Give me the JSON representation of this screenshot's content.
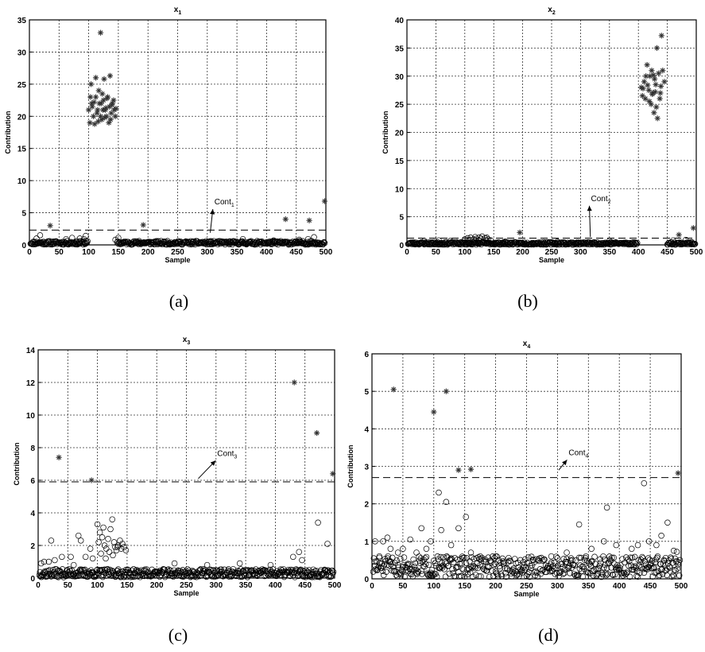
{
  "captions": [
    "(a)",
    "(b)",
    "(c)",
    "(d)"
  ],
  "chart_data": [
    {
      "type": "scatter",
      "title": "x",
      "title_sub": "1",
      "xlabel": "Sample",
      "ylabel": "Contribution",
      "xlim": [
        0,
        500
      ],
      "ylim": [
        0,
        35
      ],
      "xticks": [
        0,
        50,
        100,
        150,
        200,
        250,
        300,
        350,
        400,
        450,
        500
      ],
      "yticks": [
        0,
        5,
        10,
        15,
        20,
        25,
        30,
        35
      ],
      "grid": true,
      "control_limit": 2.3,
      "annotation": {
        "text": "Cont",
        "sub": "1",
        "x": 312,
        "y": 6.3,
        "arrow_to": [
          305,
          1.9
        ]
      },
      "series": [
        {
          "marker": "star",
          "points": [
            [
              35,
              3
            ],
            [
              192,
              3.1
            ],
            [
              432,
              4
            ],
            [
              472,
              3.8
            ],
            [
              498,
              6.8
            ],
            [
              120,
              33
            ],
            [
              112,
              26
            ],
            [
              104,
              25
            ],
            [
              126,
              25.8
            ],
            [
              136,
              26.3
            ],
            [
              100,
              21
            ],
            [
              105,
              22
            ],
            [
              108,
              20
            ],
            [
              112,
              23
            ],
            [
              115,
              21
            ],
            [
              118,
              22
            ],
            [
              120,
              20
            ],
            [
              122,
              19.5
            ],
            [
              125,
              22.5
            ],
            [
              128,
              21
            ],
            [
              130,
              20
            ],
            [
              132,
              23
            ],
            [
              135,
              21.5
            ],
            [
              138,
              20.5
            ],
            [
              140,
              22
            ],
            [
              143,
              21
            ],
            [
              145,
              20
            ],
            [
              102,
              19
            ],
            [
              106,
              21.5
            ],
            [
              110,
              18.8
            ],
            [
              114,
              20.5
            ],
            [
              117,
              24
            ],
            [
              121,
              22
            ],
            [
              124,
              21
            ],
            [
              127,
              19.8
            ],
            [
              131,
              22.8
            ],
            [
              134,
              19
            ],
            [
              139,
              21.8
            ],
            [
              142,
              22.5
            ],
            [
              146,
              21.2
            ],
            [
              103,
              23
            ],
            [
              109,
              22.2
            ],
            [
              116,
              19.2
            ],
            [
              123,
              23.5
            ],
            [
              129,
              21.3
            ],
            [
              137,
              19.5
            ]
          ]
        },
        {
          "marker": "circle",
          "seed": 11,
          "ranges": [
            [
              2,
              98,
              0.05,
              0.6
            ],
            [
              148,
              498,
              0.05,
              0.6
            ]
          ],
          "points": [
            [
              18,
              1.5
            ],
            [
              12,
              1.0
            ],
            [
              62,
              0.9
            ],
            [
              72,
              1.1
            ],
            [
              85,
              1.0
            ],
            [
              95,
              1.4
            ],
            [
              92,
              0.9
            ],
            [
              145,
              0.8
            ],
            [
              150,
              1.1
            ],
            [
              185,
              0.6
            ],
            [
              360,
              0.9
            ],
            [
              412,
              0.7
            ],
            [
              455,
              0.8
            ],
            [
              470,
              0.9
            ],
            [
              480,
              1.2
            ]
          ]
        }
      ]
    },
    {
      "type": "scatter",
      "title": "x",
      "title_sub": "2",
      "xlabel": "Sample",
      "ylabel": "Contribution",
      "xlim": [
        0,
        500
      ],
      "ylim": [
        0,
        40
      ],
      "xticks": [
        0,
        50,
        100,
        150,
        200,
        250,
        300,
        350,
        400,
        450,
        500
      ],
      "yticks": [
        0,
        5,
        10,
        15,
        20,
        25,
        30,
        35,
        40
      ],
      "grid": true,
      "control_limit": 1.2,
      "annotation": {
        "text": "Cont",
        "sub": "2",
        "x": 318,
        "y": 7.8,
        "arrow_to": [
          317,
          1.4
        ]
      },
      "series": [
        {
          "marker": "star",
          "points": [
            [
              195,
              2.2
            ],
            [
              470,
              1.8
            ],
            [
              495,
              3
            ],
            [
              440,
              37.2
            ],
            [
              432,
              35
            ],
            [
              415,
              32
            ],
            [
              420,
              30
            ],
            [
              405,
              28
            ],
            [
              410,
              29
            ],
            [
              425,
              27
            ],
            [
              430,
              28.5
            ],
            [
              435,
              30.5
            ],
            [
              412,
              26
            ],
            [
              418,
              27.5
            ],
            [
              422,
              25
            ],
            [
              428,
              29.5
            ],
            [
              438,
              27
            ],
            [
              442,
              31
            ],
            [
              408,
              27.8
            ],
            [
              416,
              28.4
            ],
            [
              424,
              26.8
            ],
            [
              427,
              23.5
            ],
            [
              433,
              22.5
            ],
            [
              437,
              26
            ],
            [
              445,
              29
            ],
            [
              413,
              30
            ],
            [
              419,
              25.5
            ],
            [
              426,
              30.2
            ],
            [
              431,
              24.5
            ],
            [
              407,
              26.5
            ],
            [
              423,
              31
            ],
            [
              439,
              28.2
            ],
            [
              429,
              27.2
            ]
          ]
        },
        {
          "marker": "circle",
          "seed": 23,
          "ranges": [
            [
              2,
              398,
              0.05,
              0.5
            ],
            [
              450,
              498,
              0.05,
              0.5
            ]
          ],
          "points": [
            [
              100,
              1.0
            ],
            [
              105,
              1.2
            ],
            [
              110,
              1.3
            ],
            [
              115,
              1.0
            ],
            [
              120,
              1.1
            ],
            [
              125,
              1.3
            ],
            [
              130,
              1.5
            ],
            [
              135,
              1.2
            ],
            [
              140,
              1.0
            ],
            [
              145,
              0.8
            ],
            [
              108,
              0.9
            ],
            [
              118,
              1.4
            ],
            [
              128,
              1.1
            ],
            [
              138,
              1.3
            ],
            [
              30,
              0.7
            ],
            [
              55,
              0.8
            ],
            [
              75,
              0.7
            ],
            [
              170,
              0.6
            ],
            [
              260,
              0.6
            ],
            [
              350,
              0.7
            ],
            [
              460,
              0.8
            ],
            [
              482,
              0.9
            ]
          ]
        }
      ]
    },
    {
      "type": "scatter",
      "title": "x",
      "title_sub": "3",
      "xlabel": "Sample",
      "ylabel": "Contribution",
      "xlim": [
        0,
        500
      ],
      "ylim": [
        0,
        14
      ],
      "xticks": [
        0,
        50,
        100,
        150,
        200,
        250,
        300,
        350,
        400,
        450,
        500
      ],
      "yticks": [
        0,
        2,
        4,
        6,
        8,
        10,
        12,
        14
      ],
      "grid": true,
      "control_limit": 5.9,
      "annotation": {
        "text": "Cont",
        "sub": "3",
        "x": 302,
        "y": 7.5,
        "arrow_to": [
          270,
          6.1
        ]
      },
      "series": [
        {
          "marker": "star",
          "points": [
            [
              35,
              7.4
            ],
            [
              90,
              6
            ],
            [
              432,
              12
            ],
            [
              470,
              8.9
            ],
            [
              497,
              6.4
            ]
          ]
        },
        {
          "marker": "circle",
          "seed": 37,
          "ranges": [
            [
              2,
              498,
              0.05,
              0.55
            ]
          ],
          "points": [
            [
              10,
              1.0
            ],
            [
              22,
              2.3
            ],
            [
              28,
              1.1
            ],
            [
              40,
              1.3
            ],
            [
              55,
              1.3
            ],
            [
              60,
              0.8
            ],
            [
              68,
              2.6
            ],
            [
              72,
              2.3
            ],
            [
              80,
              1.3
            ],
            [
              88,
              1.8
            ],
            [
              92,
              1.2
            ],
            [
              100,
              3.3
            ],
            [
              104,
              2.8
            ],
            [
              108,
              2.5
            ],
            [
              110,
              3.1
            ],
            [
              112,
              2.0
            ],
            [
              115,
              1.8
            ],
            [
              118,
              2.4
            ],
            [
              120,
              1.6
            ],
            [
              122,
              3.0
            ],
            [
              125,
              3.6
            ],
            [
              128,
              2.2
            ],
            [
              130,
              1.9
            ],
            [
              132,
              1.7
            ],
            [
              135,
              2.0
            ],
            [
              138,
              2.3
            ],
            [
              140,
              1.8
            ],
            [
              142,
              2.1
            ],
            [
              145,
              1.9
            ],
            [
              148,
              1.7
            ],
            [
              102,
              2.2
            ],
            [
              106,
              1.5
            ],
            [
              114,
              1.2
            ],
            [
              126,
              1.4
            ],
            [
              134,
              1.9
            ],
            [
              230,
              0.9
            ],
            [
              285,
              0.8
            ],
            [
              340,
              0.9
            ],
            [
              392,
              0.8
            ],
            [
              430,
              1.3
            ],
            [
              440,
              1.6
            ],
            [
              445,
              1.1
            ],
            [
              472,
              3.4
            ],
            [
              488,
              2.1
            ],
            [
              18,
              1.0
            ],
            [
              5,
              0.9
            ]
          ]
        }
      ]
    },
    {
      "type": "scatter",
      "title": "x",
      "title_sub": "4",
      "xlabel": "Sample",
      "ylabel": "Contribution",
      "xlim": [
        0,
        500
      ],
      "ylim": [
        0,
        6
      ],
      "xticks": [
        0,
        50,
        100,
        150,
        200,
        250,
        300,
        350,
        400,
        450,
        500
      ],
      "yticks": [
        0,
        1,
        2,
        3,
        4,
        5,
        6
      ],
      "grid": true,
      "control_limit": 2.7,
      "annotation": {
        "text": "Cont",
        "sub": "4",
        "x": 318,
        "y": 3.3,
        "arrow_to": [
          302,
          2.9
        ]
      },
      "series": [
        {
          "marker": "star",
          "points": [
            [
              35,
              5.05
            ],
            [
              100,
              4.45
            ],
            [
              120,
              5.0
            ],
            [
              140,
              2.9
            ],
            [
              160,
              2.92
            ],
            [
              495,
              2.82
            ]
          ]
        },
        {
          "marker": "circle",
          "seed": 51,
          "ranges": [
            [
              2,
              498,
              0.05,
              0.6
            ]
          ],
          "points": [
            [
              5,
              1.0
            ],
            [
              12,
              0.6
            ],
            [
              18,
              1.0
            ],
            [
              25,
              1.1
            ],
            [
              30,
              0.8
            ],
            [
              42,
              0.7
            ],
            [
              50,
              0.8
            ],
            [
              62,
              1.05
            ],
            [
              72,
              0.7
            ],
            [
              80,
              1.35
            ],
            [
              88,
              0.8
            ],
            [
              95,
              1.0
            ],
            [
              108,
              2.3
            ],
            [
              112,
              1.3
            ],
            [
              120,
              2.05
            ],
            [
              128,
              0.9
            ],
            [
              140,
              1.35
            ],
            [
              152,
              1.65
            ],
            [
              160,
              0.7
            ],
            [
              175,
              0.6
            ],
            [
              200,
              0.6
            ],
            [
              240,
              0.5
            ],
            [
              290,
              0.6
            ],
            [
              315,
              0.7
            ],
            [
              335,
              1.45
            ],
            [
              355,
              0.8
            ],
            [
              375,
              1.0
            ],
            [
              380,
              1.9
            ],
            [
              395,
              0.9
            ],
            [
              420,
              0.8
            ],
            [
              430,
              0.9
            ],
            [
              440,
              2.55
            ],
            [
              448,
              1.0
            ],
            [
              460,
              0.9
            ],
            [
              468,
              1.15
            ],
            [
              478,
              1.5
            ],
            [
              488,
              0.75
            ],
            [
              493,
              0.72
            ]
          ]
        }
      ]
    }
  ]
}
